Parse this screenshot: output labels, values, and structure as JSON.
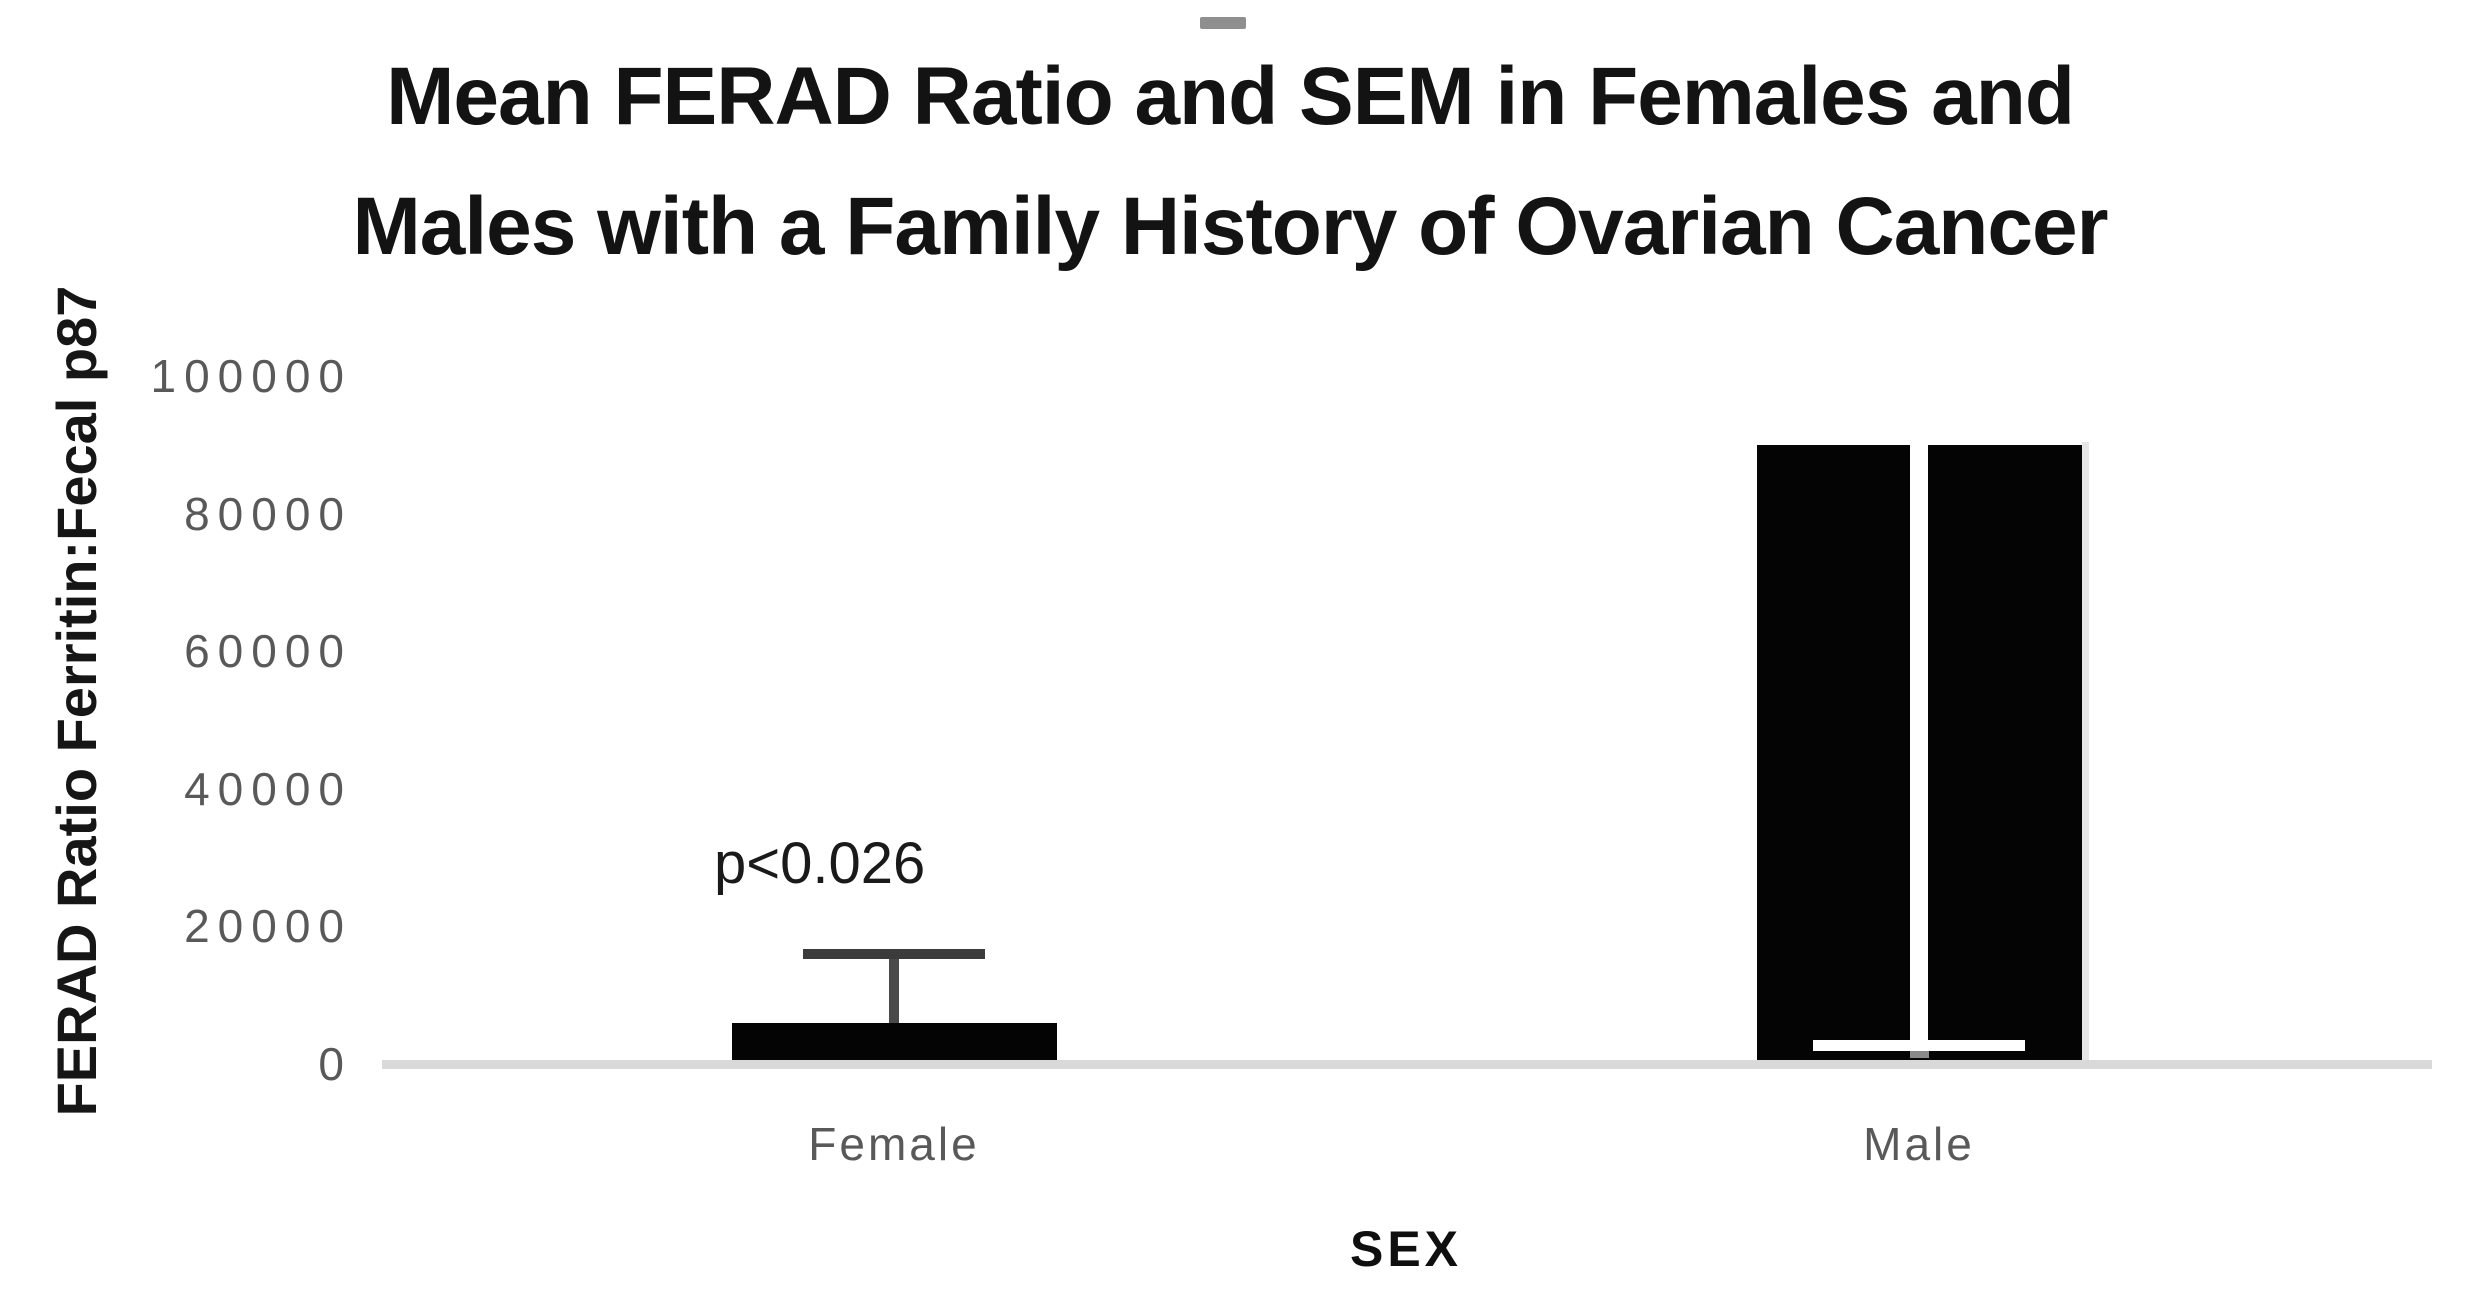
{
  "chart_data": {
    "type": "bar",
    "title": "Mean FERAD Ratio and SEM in Females and Males with a Family History of Ovarian Cancer",
    "title_lines": [
      "Mean FERAD Ratio and SEM in Females and",
      "Males with a Family History of Ovarian Cancer"
    ],
    "xlabel": "SEX",
    "ylabel": "FERAD Ratio Ferritin:Fecal p87",
    "categories": [
      "Female",
      "Male"
    ],
    "values": [
      6000,
      90000
    ],
    "ylim": [
      0,
      100000
    ],
    "yticks": [
      0,
      20000,
      40000,
      60000,
      80000,
      100000
    ],
    "ytick_labels": [
      "0",
      "20000",
      "40000",
      "60000",
      "80000",
      "100000"
    ],
    "grid": false,
    "legend": null,
    "bar_color": "#000000",
    "axis_line_color": "#d9d9d9",
    "tick_label_color": "#595959",
    "error_bars": [
      {
        "category": "Female",
        "mean": 6000,
        "sem": 10000,
        "cap_value": 16000,
        "cap_side": "upper",
        "color_style": "dark"
      },
      {
        "category": "Male",
        "mean": 90000,
        "sem": 86500,
        "cap_value": 3500,
        "cap_side": "lower",
        "color_style": "white"
      }
    ],
    "annotations": [
      {
        "text": "p<0.026",
        "target": "Female",
        "placement": "above-error-bar"
      }
    ]
  },
  "artifacts": {
    "crop_handle": {
      "shape": "small-gray-dash",
      "color": "#8f8f8f"
    },
    "bar_shadow": {
      "shape": "light-gray-strip",
      "color": "#e6e6e6"
    }
  }
}
